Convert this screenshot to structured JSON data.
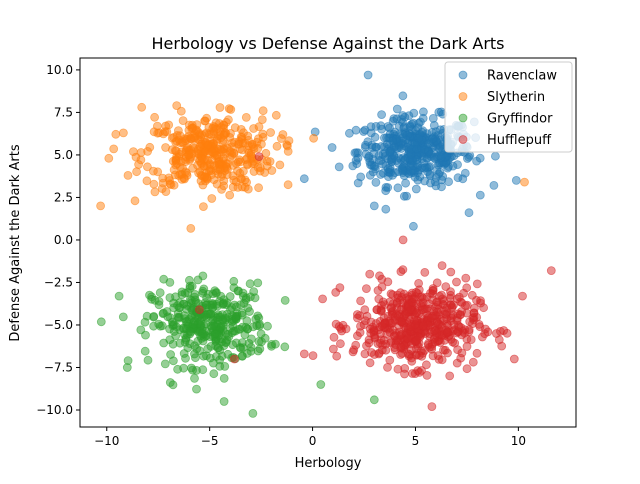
{
  "chart_data": {
    "type": "scatter",
    "title": "Herbology vs Defense Against the Dark Arts",
    "xlabel": "Herbology",
    "ylabel": "Defense Against the Dark Arts",
    "xlim": [
      -11.3,
      12.8
    ],
    "ylim": [
      -11.0,
      10.7
    ],
    "xticks": [
      -10,
      -5,
      0,
      5,
      10
    ],
    "yticks": [
      -10.0,
      -7.5,
      -5.0,
      -2.5,
      0.0,
      2.5,
      5.0,
      7.5,
      10.0
    ],
    "xtick_labels": [
      "−10",
      "−5",
      "0",
      "5",
      "10"
    ],
    "ytick_labels": [
      "−10.0",
      "−7.5",
      "−5.0",
      "−2.5",
      "0.0",
      "2.5",
      "5.0",
      "7.5",
      "10.0"
    ],
    "grid": false,
    "legend_position": "top-right",
    "series": [
      {
        "name": "Ravenclaw",
        "color": "#1f77b4",
        "center": [
          5.0,
          5.2
        ],
        "spread": [
          1.4,
          1.0
        ],
        "count": 420,
        "outliers": [
          [
            2.7,
            9.7
          ],
          [
            -0.4,
            3.6
          ],
          [
            4.9,
            0.8
          ],
          [
            9.9,
            3.5
          ],
          [
            7.6,
            1.6
          ],
          [
            3.0,
            2.0
          ]
        ]
      },
      {
        "name": "Slytherin",
        "color": "#ff7f0e",
        "center": [
          -5.0,
          5.1
        ],
        "spread": [
          1.6,
          1.1
        ],
        "count": 380,
        "outliers": [
          [
            -10.3,
            2.0
          ],
          [
            -9.9,
            4.8
          ],
          [
            10.3,
            3.4
          ],
          [
            -8.3,
            7.8
          ],
          [
            -2.4,
            7.6
          ],
          [
            -6.6,
            7.9
          ]
        ]
      },
      {
        "name": "Gryffindor",
        "color": "#2ca02c",
        "center": [
          -5.0,
          -5.0
        ],
        "spread": [
          1.4,
          1.2
        ],
        "count": 360,
        "outliers": [
          [
            -9.4,
            -3.3
          ],
          [
            -9.0,
            -7.5
          ],
          [
            -2.9,
            -10.2
          ],
          [
            -4.3,
            -9.5
          ],
          [
            0.4,
            -8.5
          ],
          [
            3.0,
            -9.4
          ]
        ]
      },
      {
        "name": "Hufflepuff",
        "color": "#d62728",
        "center": [
          5.0,
          -5.0
        ],
        "spread": [
          1.5,
          1.2
        ],
        "count": 500,
        "outliers": [
          [
            11.6,
            -1.8
          ],
          [
            4.4,
            0.0
          ],
          [
            -0.4,
            -6.7
          ],
          [
            5.8,
            -9.8
          ],
          [
            9.8,
            -7.0
          ],
          [
            10.2,
            -3.3
          ],
          [
            -3.8,
            -7.0
          ],
          [
            -5.5,
            -4.1
          ],
          [
            -2.6,
            4.9
          ]
        ]
      }
    ]
  }
}
